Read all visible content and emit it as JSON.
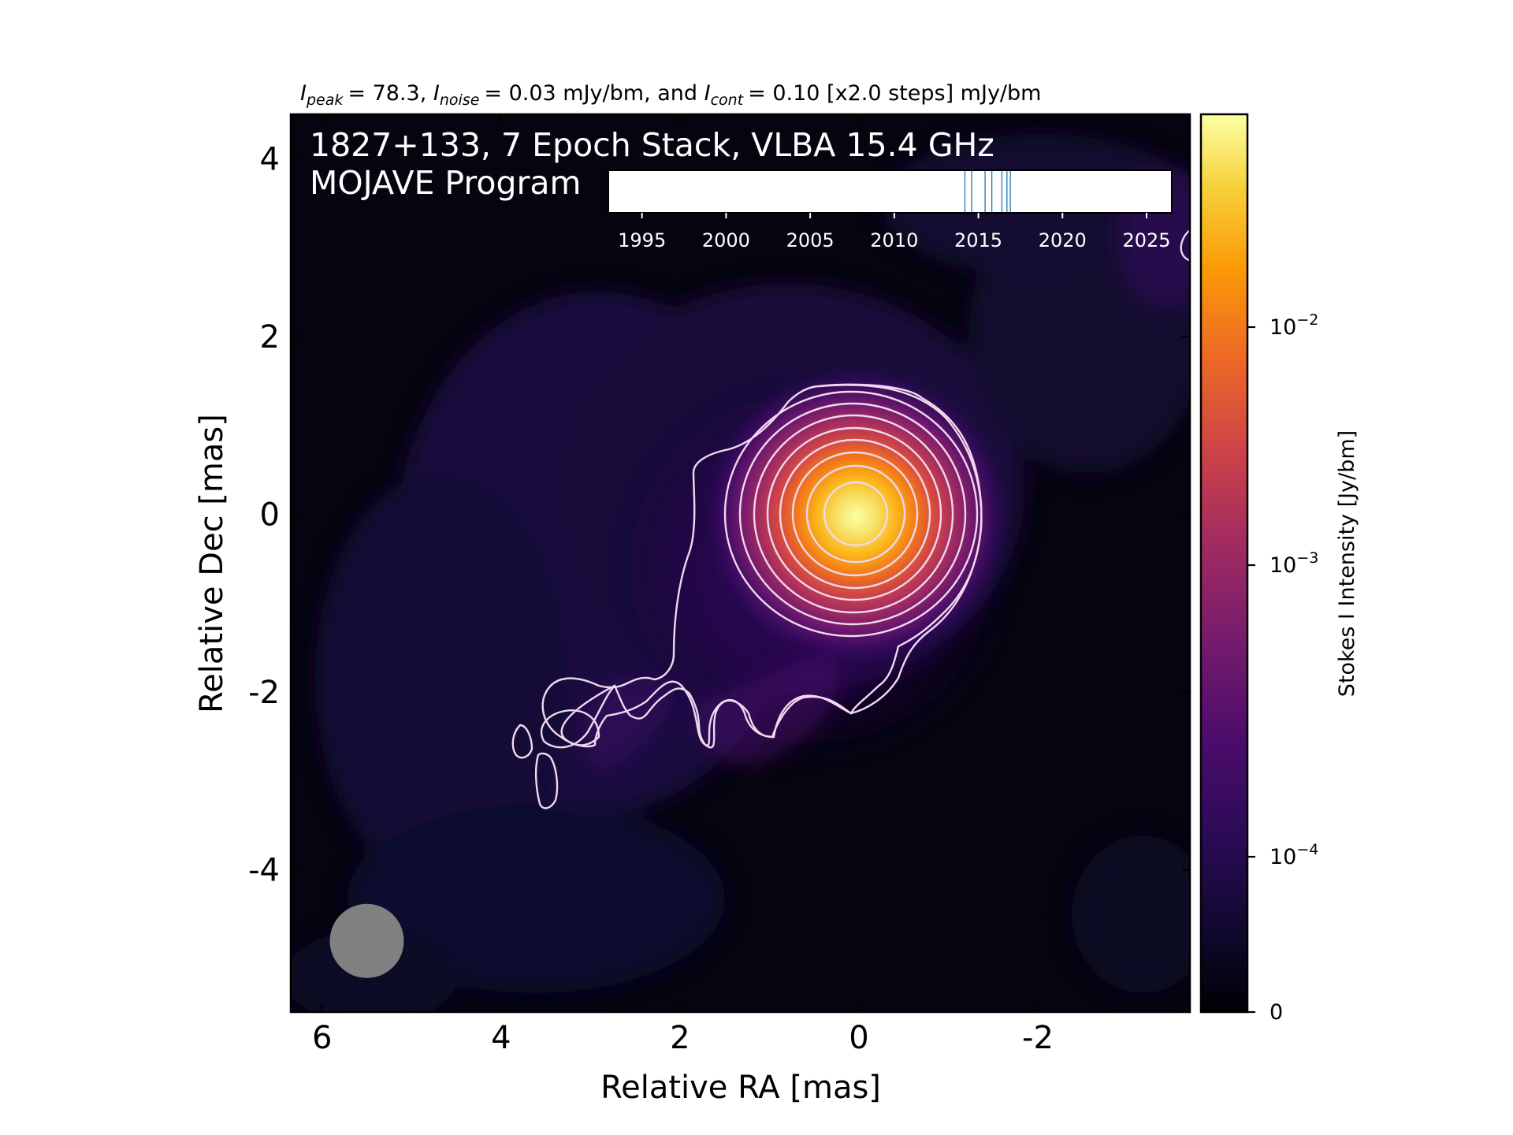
{
  "chart_data": {
    "type": "heatmap",
    "header": {
      "peak_sym": "I",
      "peak_sub": "peak",
      "peak_value": "= 78.3, ",
      "noise_sym": "I",
      "noise_sub": "noise",
      "noise_value": "= 0.03 mJy/bm, and ",
      "cont_sym": "I",
      "cont_sub": "cont",
      "cont_value": "= 0.10 [x2.0 steps] mJy/bm"
    },
    "title_line1": "1827+133, 7 Epoch Stack, VLBA 15.4 GHz",
    "title_line2": "MOJAVE Program",
    "xlabel": "Relative RA [mas]",
    "ylabel": "Relative Dec [mas]",
    "xlim": [
      6.35,
      -3.7
    ],
    "ylim": [
      -5.6,
      4.5
    ],
    "x_ticks": [
      6,
      4,
      2,
      0,
      -2
    ],
    "x_tick_labels": [
      "6",
      "4",
      "2",
      "0",
      "-2"
    ],
    "y_ticks": [
      4,
      2,
      0,
      -2,
      -4
    ],
    "y_tick_labels": [
      "4",
      "2",
      "0",
      "-2",
      "-4"
    ],
    "source": {
      "x": 0,
      "y": 0,
      "peak_jy": 0.0783
    },
    "contours_mjy": [
      0.1,
      0.2,
      0.4,
      0.8,
      1.6,
      3.2,
      6.4,
      12.8,
      25.6,
      51.2
    ],
    "beam": {
      "x": 5.5,
      "y": -4.8,
      "diameter_mas": 0.82,
      "color": "#808080"
    },
    "colorbar": {
      "label": "Stokes I Intensity [Jy/bm]",
      "scale": "log",
      "range": [
        0,
        0.0783
      ],
      "tick_values": [
        0.01,
        0.001,
        0.0001,
        0
      ],
      "tick_base": [
        "10",
        "10",
        "10",
        "0"
      ],
      "tick_exp": [
        "−2",
        "−3",
        "−4",
        ""
      ]
    },
    "epoch_axis": {
      "range": [
        1993,
        2026.5
      ],
      "ticks": [
        1995,
        2000,
        2005,
        2010,
        2015,
        2020,
        2025
      ],
      "tick_labels": [
        "1995",
        "2000",
        "2005",
        "2010",
        "2015",
        "2020",
        "2025"
      ],
      "epochs": [
        2014.2,
        2014.6,
        2015.4,
        2015.8,
        2016.4,
        2016.7,
        2016.9
      ],
      "line_color": "#1f77b4"
    },
    "colors": {
      "contour": "#f0d9ee",
      "beam": "#808080"
    }
  }
}
